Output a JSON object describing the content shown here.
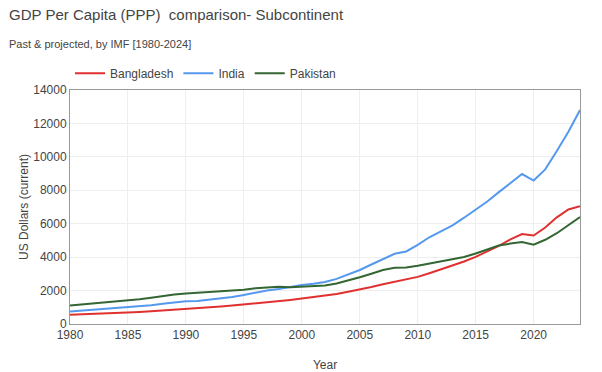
{
  "chart_data": {
    "type": "line",
    "title": "GDP Per Capita (PPP)  comparison- Subcontinent",
    "subtitle": "Past & projected, by IMF [1980-2024]",
    "xlabel": "Year",
    "ylabel": "US Dollars (current)",
    "x": [
      1980,
      1981,
      1982,
      1983,
      1984,
      1985,
      1986,
      1987,
      1988,
      1989,
      1990,
      1991,
      1992,
      1993,
      1994,
      1995,
      1996,
      1997,
      1998,
      1999,
      2000,
      2001,
      2002,
      2003,
      2004,
      2005,
      2006,
      2007,
      2008,
      2009,
      2010,
      2011,
      2012,
      2013,
      2014,
      2015,
      2016,
      2017,
      2018,
      2019,
      2020,
      2021,
      2022,
      2023,
      2024
    ],
    "series": [
      {
        "name": "Bangladesh",
        "color": "#e03030",
        "values": [
          560,
          580,
          600,
          630,
          660,
          690,
          720,
          760,
          800,
          850,
          900,
          940,
          990,
          1040,
          1100,
          1160,
          1230,
          1300,
          1370,
          1440,
          1520,
          1600,
          1690,
          1800,
          1930,
          2060,
          2210,
          2380,
          2530,
          2650,
          2820,
          3040,
          3260,
          3490,
          3740,
          4020,
          4330,
          4680,
          5060,
          5380,
          5290,
          5770,
          6380,
          6850,
          7050
        ]
      },
      {
        "name": "India",
        "color": "#5599ee",
        "values": [
          750,
          800,
          840,
          900,
          950,
          1010,
          1060,
          1120,
          1210,
          1290,
          1360,
          1380,
          1460,
          1530,
          1620,
          1740,
          1890,
          2010,
          2090,
          2220,
          2330,
          2410,
          2510,
          2700,
          2950,
          3230,
          3560,
          3900,
          4200,
          4340,
          4730,
          5190,
          5560,
          5900,
          6360,
          6840,
          7330,
          7890,
          8420,
          8970,
          8580,
          9250,
          10350,
          11500,
          12800
        ]
      },
      {
        "name": "Pakistan",
        "color": "#336633",
        "values": [
          1100,
          1160,
          1210,
          1270,
          1330,
          1400,
          1480,
          1570,
          1680,
          1760,
          1830,
          1870,
          1910,
          1930,
          1970,
          2050,
          2140,
          2200,
          2230,
          2200,
          2230,
          2230,
          2300,
          2420,
          2590,
          2800,
          3010,
          3230,
          3360,
          3380,
          3480,
          3610,
          3730,
          3850,
          4010,
          4220,
          4450,
          4700,
          4810,
          4900,
          4740,
          5040,
          5430,
          5900,
          6400
        ]
      }
    ],
    "xlim": [
      1980,
      2024
    ],
    "ylim": [
      0,
      14000
    ],
    "xticks": [
      1980,
      1985,
      1990,
      1995,
      2000,
      2005,
      2010,
      2015,
      2020
    ],
    "yticks": [
      0,
      2000,
      4000,
      6000,
      8000,
      10000,
      12000,
      14000
    ],
    "grid": true,
    "legend": "top"
  }
}
